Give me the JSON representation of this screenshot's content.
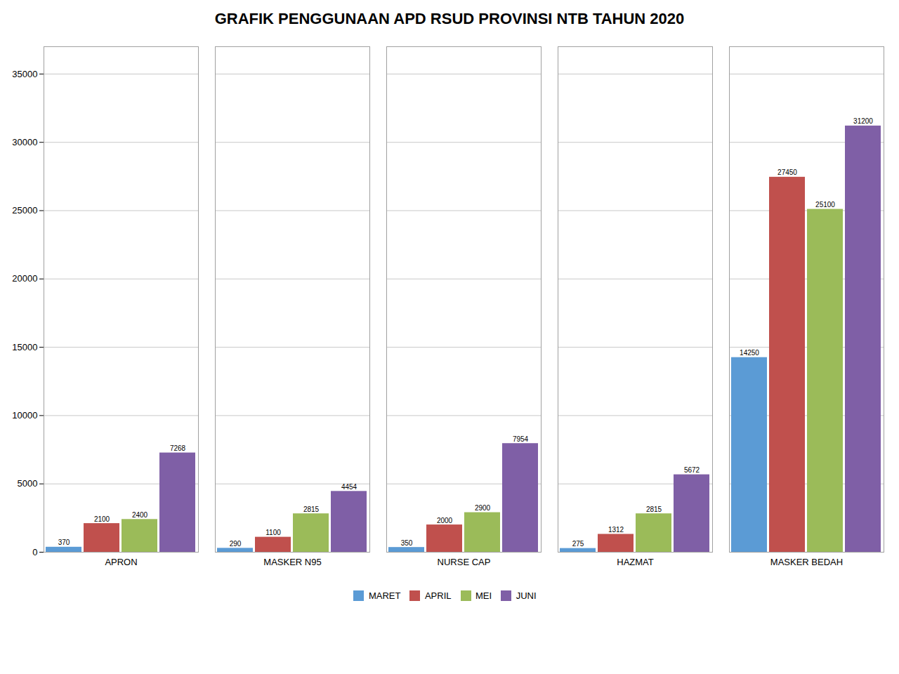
{
  "chart_data": {
    "type": "bar",
    "title": "GRAFIK PENGGUNAAN APD RSUD  PROVINSI NTB TAHUN 2020",
    "categories": [
      "APRON",
      "MASKER N95",
      "NURSE CAP",
      "HAZMAT",
      "MASKER BEDAH"
    ],
    "series": [
      {
        "name": "MARET",
        "color": "#5b9bd5",
        "values": [
          370,
          290,
          350,
          275,
          14250
        ]
      },
      {
        "name": "APRIL",
        "color": "#c0504d",
        "values": [
          2100,
          1100,
          2000,
          1312,
          27450
        ]
      },
      {
        "name": "MEI",
        "color": "#9bbb59",
        "values": [
          2400,
          2815,
          2900,
          2815,
          25100
        ]
      },
      {
        "name": "JUNI",
        "color": "#7f5fa6",
        "values": [
          7268,
          4454,
          7954,
          5672,
          31200
        ]
      }
    ],
    "ylim": [
      0,
      37000
    ],
    "yticks": [
      0,
      5000,
      10000,
      15000,
      20000,
      25000,
      30000,
      35000
    ],
    "grid": true,
    "legend": "bottom",
    "data_labels": true
  }
}
